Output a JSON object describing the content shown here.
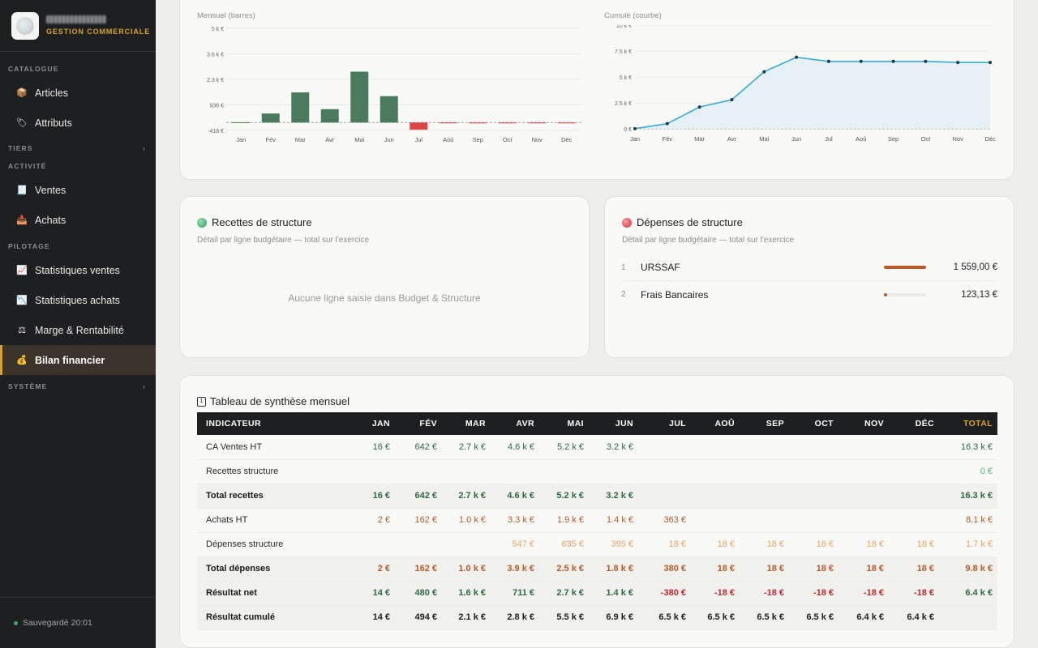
{
  "brand": {
    "subtitle": "GESTION COMMERCIALE"
  },
  "sidebar": {
    "sections": {
      "catalogue": "CATALOGUE",
      "tiers": "TIERS",
      "activite": "ACTIVITÉ",
      "pilotage": "PILOTAGE",
      "systeme": "SYSTÈME"
    },
    "items": {
      "articles": "Articles",
      "attributs": "Attributs",
      "ventes": "Ventes",
      "achats": "Achats",
      "stats_ventes": "Statistiques ventes",
      "stats_achats": "Statistiques achats",
      "marge": "Marge & Rentabilité",
      "bilan": "Bilan financier"
    },
    "footer": "Sauvegardé 20:01"
  },
  "charts": {
    "monthly_label": "Mensuel (barres)",
    "cumulative_label": "Cumulé (courbe)"
  },
  "chart_data": [
    {
      "type": "bar",
      "title": "Mensuel (barres)",
      "categories": [
        "Jan",
        "Fév",
        "Mar",
        "Avr",
        "Mai",
        "Jun",
        "Jul",
        "Aoû",
        "Sep",
        "Oct",
        "Nov",
        "Déc"
      ],
      "values": [
        14,
        480,
        1600,
        711,
        2700,
        1400,
        -380,
        -18,
        -18,
        -18,
        -18,
        -18
      ],
      "ytick_labels": [
        "5 k €",
        "3.6 k €",
        "2.3 k €",
        "936 €",
        "-418 €"
      ],
      "ylim": [
        -418,
        5000
      ],
      "colors": {
        "positive": "#4a7b5d",
        "negative": "#dd4545"
      }
    },
    {
      "type": "area",
      "title": "Cumulé (courbe)",
      "categories": [
        "Jan",
        "Fév",
        "Mar",
        "Avr",
        "Mai",
        "Jun",
        "Jul",
        "Aoû",
        "Sep",
        "Oct",
        "Nov",
        "Déc"
      ],
      "values": [
        14,
        494,
        2100,
        2800,
        5500,
        6900,
        6500,
        6500,
        6500,
        6500,
        6400,
        6400
      ],
      "ytick_labels": [
        "10 k €",
        "7.5 k €",
        "5 k €",
        "2.5 k €",
        "0 €"
      ],
      "ylim": [
        0,
        10000
      ],
      "colors": {
        "line": "#3aaad4",
        "fill": "#e2f0f5"
      }
    }
  ],
  "recettes": {
    "title": "Recettes de structure",
    "subtitle": "Détail par ligne budgétaire — total sur l'exercice",
    "empty": "Aucune ligne saisie dans Budget & Structure",
    "color": "#3fb56f"
  },
  "depenses": {
    "title": "Dépenses de structure",
    "subtitle": "Détail par ligne budgétaire — total sur l'exercice",
    "color": "#e04a4a",
    "rows": [
      {
        "n": "1",
        "name": "URSSAF",
        "value": "1 559,00 €",
        "ratio": 1.0
      },
      {
        "n": "2",
        "name": "Frais Bancaires",
        "value": "123,13 €",
        "ratio": 0.08
      }
    ]
  },
  "table": {
    "title": "Tableau de synthèse mensuel",
    "headers": [
      "INDICATEUR",
      "JAN",
      "FÉV",
      "MAR",
      "AVR",
      "MAI",
      "JUN",
      "JUL",
      "AOÛ",
      "SEP",
      "OCT",
      "NOV",
      "DÉC",
      "TOTAL"
    ],
    "rows": [
      {
        "bold": false,
        "cls": "c-green",
        "cells": [
          "CA Ventes HT",
          "16 €",
          "642 €",
          "2.7 k €",
          "4.6 k €",
          "5.2 k €",
          "3.2 k €",
          "",
          "",
          "",
          "",
          "",
          "",
          "16.3 k €"
        ],
        "total_cls": "c-green"
      },
      {
        "bold": false,
        "cls": "c-green-l",
        "cells": [
          "Recettes structure",
          "",
          "",
          "",
          "",
          "",
          "",
          "",
          "",
          "",
          "",
          "",
          "",
          "0 €"
        ],
        "total_cls": "c-green-l"
      },
      {
        "bold": true,
        "cls": "c-green",
        "cells": [
          "Total recettes",
          "16 €",
          "642 €",
          "2.7 k €",
          "4.6 k €",
          "5.2 k €",
          "3.2 k €",
          "",
          "",
          "",
          "",
          "",
          "",
          "16.3 k €"
        ],
        "total_cls": "c-green"
      },
      {
        "bold": false,
        "cls": "c-orange",
        "cells": [
          "Achats HT",
          "2 €",
          "162 €",
          "1.0 k €",
          "3.3 k €",
          "1.9 k €",
          "1.4 k €",
          "363 €",
          "",
          "",
          "",
          "",
          "",
          "8.1 k €"
        ],
        "total_cls": "c-orange"
      },
      {
        "bold": false,
        "cls": "c-orange-l",
        "cells": [
          "Dépenses structure",
          "",
          "",
          "",
          "547 €",
          "635 €",
          "395 €",
          "18 €",
          "18 €",
          "18 €",
          "18 €",
          "18 €",
          "18 €",
          "1.7 k €"
        ],
        "total_cls": "c-orange-l"
      },
      {
        "bold": true,
        "cls": "c-orange",
        "cells": [
          "Total dépenses",
          "2 €",
          "162 €",
          "1.0 k €",
          "3.9 k €",
          "2.5 k €",
          "1.8 k €",
          "380 €",
          "18 €",
          "18 €",
          "18 €",
          "18 €",
          "18 €",
          "9.8 k €"
        ],
        "total_cls": "c-orange"
      },
      {
        "bold": true,
        "cls": "mixed",
        "cells": [
          "Résultat net",
          "14 €",
          "480 €",
          "1.6 k €",
          "711 €",
          "2.7 k €",
          "1.4 k €",
          "-380 €",
          "-18 €",
          "-18 €",
          "-18 €",
          "-18 €",
          "-18 €",
          "6.4 k €"
        ],
        "total_cls": "c-green"
      },
      {
        "bold": true,
        "cls": "c-dark",
        "cells": [
          "Résultat cumulé",
          "14 €",
          "494 €",
          "2.1 k €",
          "2.8 k €",
          "5.5 k €",
          "6.9 k €",
          "6.5 k €",
          "6.5 k €",
          "6.5 k €",
          "6.5 k €",
          "6.4 k €",
          "6.4 k €",
          ""
        ],
        "total_cls": "c-dark"
      }
    ]
  }
}
